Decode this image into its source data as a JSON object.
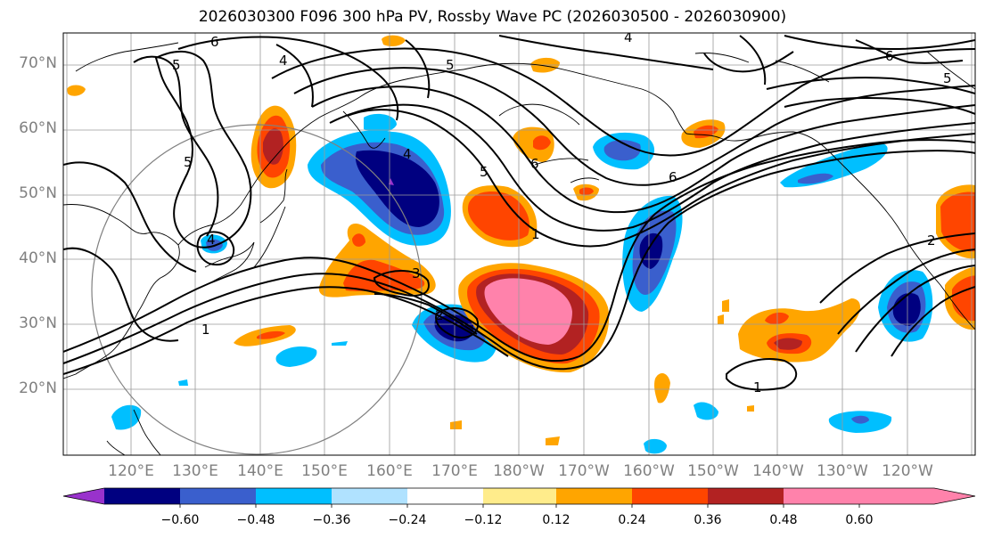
{
  "title": "2026030300 F096 300 hPa PV, Rossby Wave PC (2026030500 - 2026030900)",
  "lat_labels": [
    "70°N",
    "60°N",
    "50°N",
    "40°N",
    "30°N",
    "20°N"
  ],
  "lon_labels": [
    "120°E",
    "130°E",
    "140°E",
    "150°E",
    "160°E",
    "170°E",
    "180°W",
    "170°W",
    "160°W",
    "150°W",
    "140°W",
    "130°W",
    "120°W"
  ],
  "colorbar": {
    "colors": [
      "#9932cc",
      "#000080",
      "#3a5fcd",
      "#00bfff",
      "#b0e2ff",
      "#ffffff",
      "#ffec8b",
      "#ffa500",
      "#ff4500",
      "#b22222",
      "#ff82ab"
    ],
    "tick_labels": [
      "−0.60",
      "−0.48",
      "−0.36",
      "−0.24",
      "−0.12",
      "0.12",
      "0.24",
      "0.36",
      "0.48",
      "0.60"
    ]
  },
  "contour_labels": [
    "6",
    "5",
    "4",
    "5",
    "4",
    "3",
    "2",
    "1",
    "4",
    "5",
    "6",
    "1",
    "6",
    "4",
    "5",
    "6",
    "5",
    "2",
    "1"
  ]
}
